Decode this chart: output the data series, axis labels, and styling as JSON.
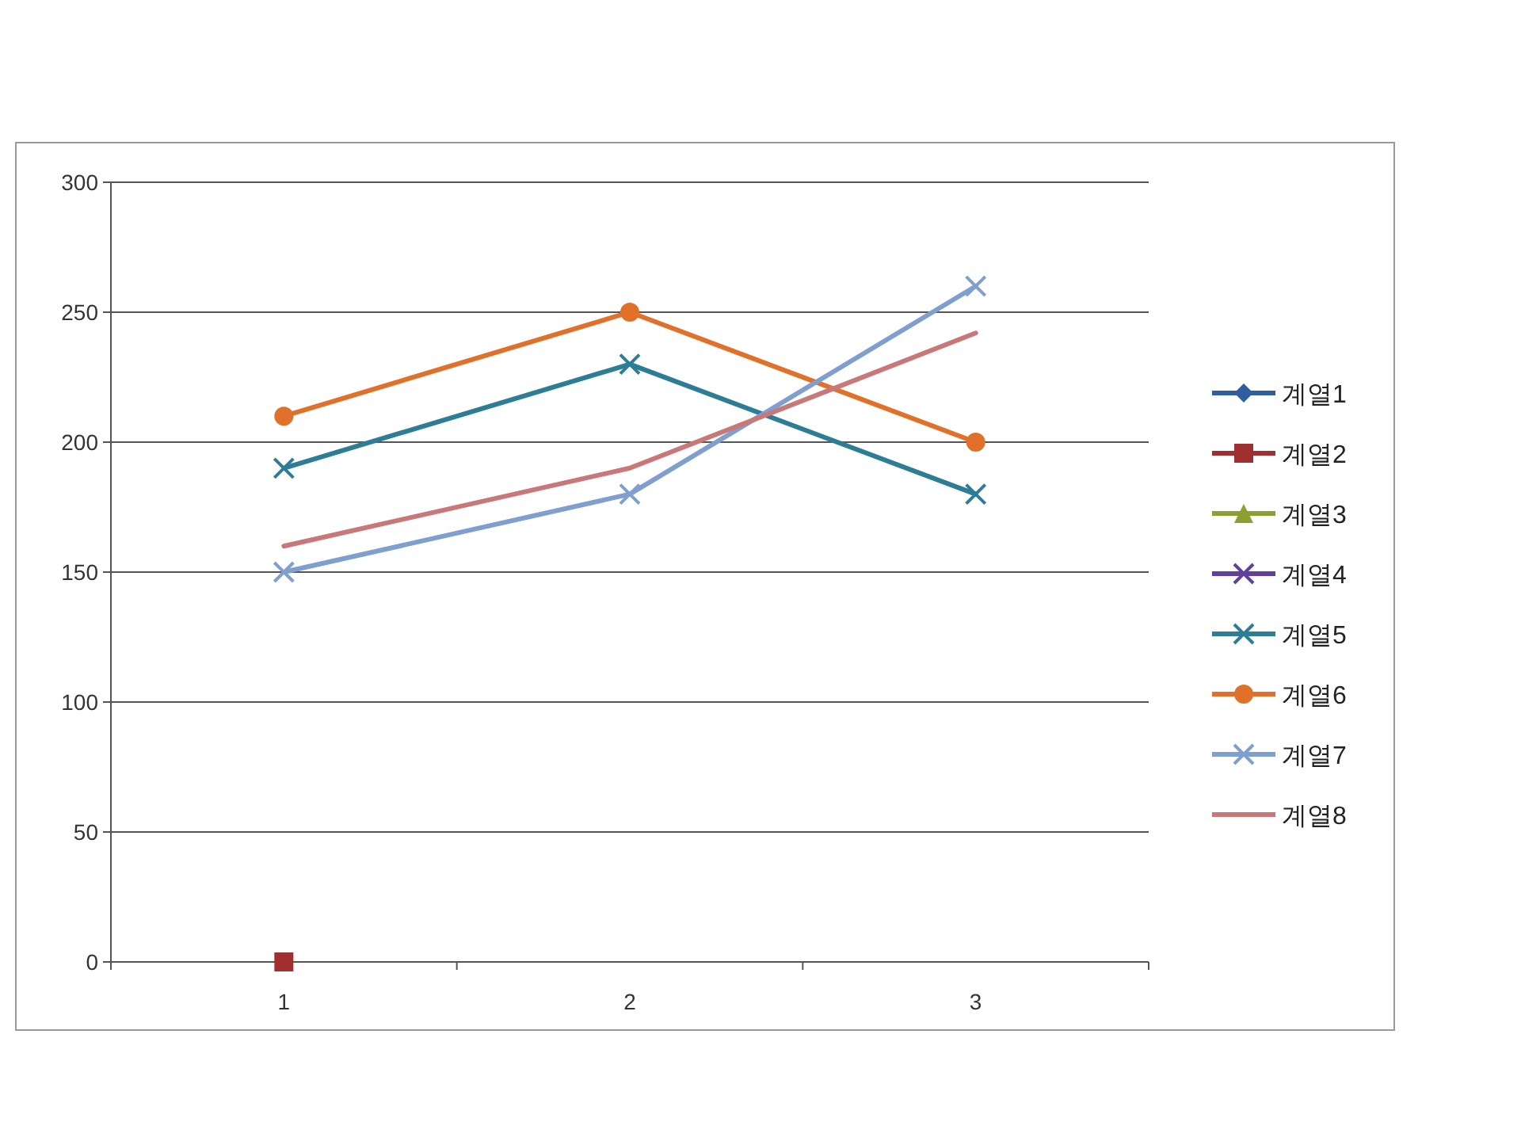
{
  "chart_data": {
    "type": "line",
    "categories": [
      "1",
      "2",
      "3"
    ],
    "ylim": [
      0,
      300
    ],
    "yticks": [
      0,
      50,
      100,
      150,
      200,
      250,
      300
    ],
    "grid": "y",
    "legend": "right",
    "series": [
      {
        "name": "계열1",
        "color": "#2f5f9f",
        "marker": "diamond",
        "values": [
          null,
          null,
          null
        ]
      },
      {
        "name": "계열2",
        "color": "#a03030",
        "marker": "square",
        "values": [
          0,
          null,
          null
        ]
      },
      {
        "name": "계열3",
        "color": "#8aa030",
        "marker": "triangle",
        "values": [
          null,
          null,
          null
        ]
      },
      {
        "name": "계열4",
        "color": "#60409a",
        "marker": "cross",
        "values": [
          null,
          null,
          null
        ]
      },
      {
        "name": "계열5",
        "color": "#2e7d96",
        "marker": "cross",
        "values": [
          190,
          230,
          180
        ]
      },
      {
        "name": "계열6",
        "color": "#e0702a",
        "marker": "circle",
        "values": [
          210,
          250,
          200
        ]
      },
      {
        "name": "계열7",
        "color": "#7f9fcf",
        "marker": "cross",
        "values": [
          150,
          180,
          260
        ]
      },
      {
        "name": "계열8",
        "color": "#c87878",
        "marker": "none",
        "values": [
          160,
          190,
          242
        ]
      }
    ]
  }
}
